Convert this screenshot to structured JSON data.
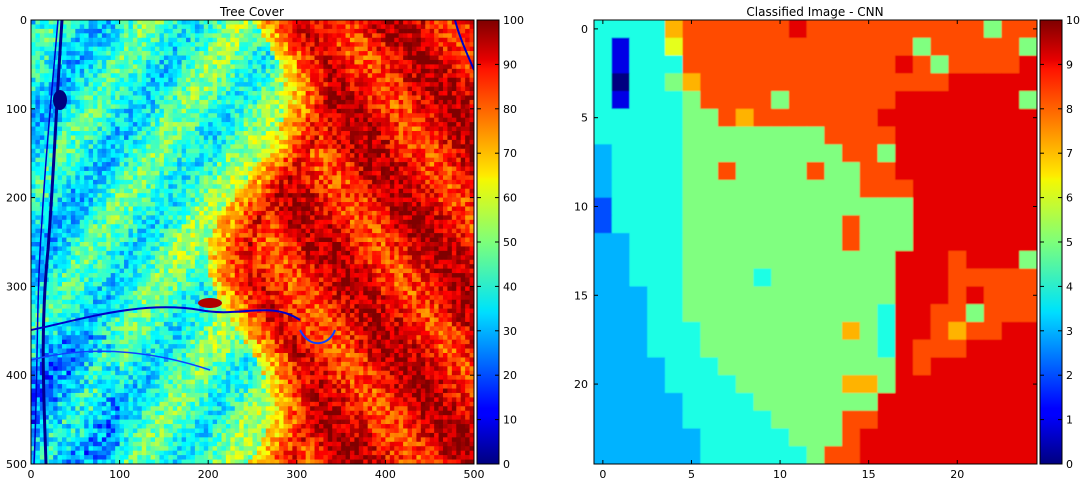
{
  "chart_data": [
    {
      "type": "heatmap",
      "title": "Tree Cover",
      "xlim": [
        0,
        500
      ],
      "ylim": [
        500,
        0
      ],
      "xticks": [
        "0",
        "100",
        "200",
        "300",
        "400",
        "500"
      ],
      "yticks": [
        "0",
        "100",
        "200",
        "300",
        "400",
        "500"
      ],
      "colormap": "jet",
      "colorbar": {
        "min": 0,
        "max": 100,
        "ticks": [
          "0",
          "10",
          "20",
          "30",
          "40",
          "50",
          "60",
          "70",
          "80",
          "90",
          "100"
        ]
      }
    },
    {
      "type": "heatmap",
      "title": "Classified Image - CNN",
      "xlim": [
        -0.5,
        24.5
      ],
      "ylim": [
        24.5,
        -0.5
      ],
      "xticks": [
        "0",
        "5",
        "10",
        "15",
        "20"
      ],
      "yticks": [
        "0",
        "5",
        "10",
        "15",
        "20"
      ],
      "colormap": "jet",
      "colorbar": {
        "min": 0,
        "max": 10,
        "ticks": [
          "0",
          "1",
          "2",
          "3",
          "4",
          "5",
          "6",
          "7",
          "8",
          "9",
          "10"
        ]
      },
      "grid": [
        [
          4,
          4,
          4,
          4,
          7,
          8,
          8,
          8,
          8,
          8,
          8,
          9,
          8,
          8,
          8,
          8,
          8,
          8,
          8,
          8,
          8,
          8,
          5,
          8,
          8
        ],
        [
          4,
          1,
          4,
          4,
          6,
          8,
          8,
          8,
          8,
          8,
          8,
          8,
          8,
          8,
          8,
          8,
          8,
          8,
          5,
          8,
          8,
          8,
          8,
          8,
          5
        ],
        [
          4,
          1,
          4,
          4,
          4,
          8,
          8,
          8,
          8,
          8,
          8,
          8,
          8,
          8,
          8,
          8,
          8,
          9,
          8,
          5,
          8,
          8,
          8,
          8,
          9
        ],
        [
          4,
          0,
          4,
          4,
          5,
          7,
          8,
          8,
          8,
          8,
          8,
          8,
          8,
          8,
          8,
          8,
          8,
          8,
          8,
          8,
          9,
          9,
          9,
          9,
          9
        ],
        [
          4,
          1,
          4,
          4,
          4,
          5,
          8,
          8,
          8,
          8,
          5,
          8,
          8,
          8,
          8,
          8,
          8,
          9,
          9,
          9,
          9,
          9,
          9,
          9,
          5
        ],
        [
          4,
          4,
          4,
          4,
          4,
          5,
          5,
          8,
          7,
          8,
          8,
          8,
          8,
          8,
          8,
          8,
          9,
          9,
          9,
          9,
          9,
          9,
          9,
          9,
          9
        ],
        [
          4,
          4,
          4,
          4,
          4,
          5,
          5,
          5,
          5,
          5,
          5,
          5,
          5,
          8,
          8,
          8,
          8,
          9,
          9,
          9,
          9,
          9,
          9,
          9,
          9
        ],
        [
          3,
          4,
          4,
          4,
          4,
          5,
          5,
          5,
          5,
          5,
          5,
          5,
          5,
          5,
          8,
          8,
          5,
          9,
          9,
          9,
          9,
          9,
          9,
          9,
          9
        ],
        [
          3,
          4,
          4,
          4,
          4,
          5,
          5,
          8,
          5,
          5,
          5,
          5,
          8,
          5,
          5,
          8,
          8,
          9,
          9,
          9,
          9,
          9,
          9,
          9,
          9
        ],
        [
          3,
          4,
          4,
          4,
          4,
          5,
          5,
          5,
          5,
          5,
          5,
          5,
          5,
          5,
          5,
          8,
          8,
          8,
          9,
          9,
          9,
          9,
          9,
          9,
          9
        ],
        [
          2,
          4,
          4,
          4,
          4,
          5,
          5,
          5,
          5,
          5,
          5,
          5,
          5,
          5,
          5,
          5,
          5,
          5,
          9,
          9,
          9,
          9,
          9,
          9,
          9
        ],
        [
          2,
          4,
          4,
          4,
          4,
          5,
          5,
          5,
          5,
          5,
          5,
          5,
          5,
          5,
          8,
          5,
          5,
          5,
          9,
          9,
          9,
          9,
          9,
          9,
          9
        ],
        [
          3,
          3,
          4,
          4,
          4,
          5,
          5,
          5,
          5,
          5,
          5,
          5,
          5,
          5,
          8,
          5,
          5,
          5,
          9,
          9,
          9,
          9,
          9,
          9,
          9
        ],
        [
          3,
          3,
          4,
          4,
          4,
          5,
          5,
          5,
          5,
          5,
          5,
          5,
          5,
          5,
          5,
          5,
          5,
          9,
          9,
          9,
          8,
          9,
          9,
          9,
          5
        ],
        [
          3,
          3,
          4,
          4,
          4,
          5,
          5,
          5,
          5,
          4,
          5,
          5,
          5,
          5,
          5,
          5,
          5,
          9,
          9,
          9,
          8,
          8,
          8,
          8,
          8
        ],
        [
          3,
          3,
          3,
          4,
          4,
          5,
          5,
          5,
          5,
          5,
          5,
          5,
          5,
          5,
          5,
          5,
          5,
          9,
          9,
          9,
          8,
          9,
          8,
          8,
          8
        ],
        [
          3,
          3,
          3,
          4,
          4,
          5,
          5,
          5,
          5,
          5,
          5,
          5,
          5,
          5,
          5,
          5,
          4,
          9,
          9,
          8,
          8,
          5,
          8,
          8,
          8
        ],
        [
          3,
          3,
          3,
          4,
          4,
          4,
          5,
          5,
          5,
          5,
          5,
          5,
          5,
          5,
          7,
          5,
          4,
          9,
          9,
          8,
          7,
          8,
          8,
          9,
          9
        ],
        [
          3,
          3,
          3,
          4,
          4,
          4,
          5,
          5,
          5,
          5,
          5,
          5,
          5,
          5,
          5,
          5,
          4,
          9,
          8,
          8,
          8,
          9,
          9,
          9,
          9
        ],
        [
          3,
          3,
          3,
          3,
          4,
          4,
          4,
          5,
          5,
          5,
          5,
          5,
          5,
          5,
          5,
          5,
          5,
          9,
          8,
          9,
          9,
          9,
          9,
          9,
          9
        ],
        [
          3,
          3,
          3,
          3,
          4,
          4,
          4,
          4,
          5,
          5,
          5,
          5,
          5,
          5,
          7,
          7,
          5,
          9,
          9,
          9,
          9,
          9,
          9,
          9,
          9
        ],
        [
          3,
          3,
          3,
          3,
          3,
          4,
          4,
          4,
          4,
          5,
          5,
          5,
          5,
          5,
          5,
          5,
          9,
          9,
          9,
          9,
          9,
          9,
          9,
          9,
          9
        ],
        [
          3,
          3,
          3,
          3,
          3,
          4,
          4,
          4,
          4,
          4,
          5,
          5,
          5,
          5,
          8,
          8,
          9,
          9,
          9,
          9,
          9,
          9,
          9,
          9,
          9
        ],
        [
          3,
          3,
          3,
          3,
          3,
          3,
          4,
          4,
          4,
          4,
          4,
          5,
          5,
          5,
          8,
          9,
          9,
          9,
          9,
          9,
          9,
          9,
          9,
          9,
          9
        ],
        [
          3,
          3,
          3,
          3,
          3,
          3,
          4,
          4,
          4,
          4,
          4,
          4,
          5,
          8,
          8,
          9,
          9,
          9,
          9,
          9,
          9,
          9,
          9,
          9,
          9
        ]
      ]
    }
  ]
}
